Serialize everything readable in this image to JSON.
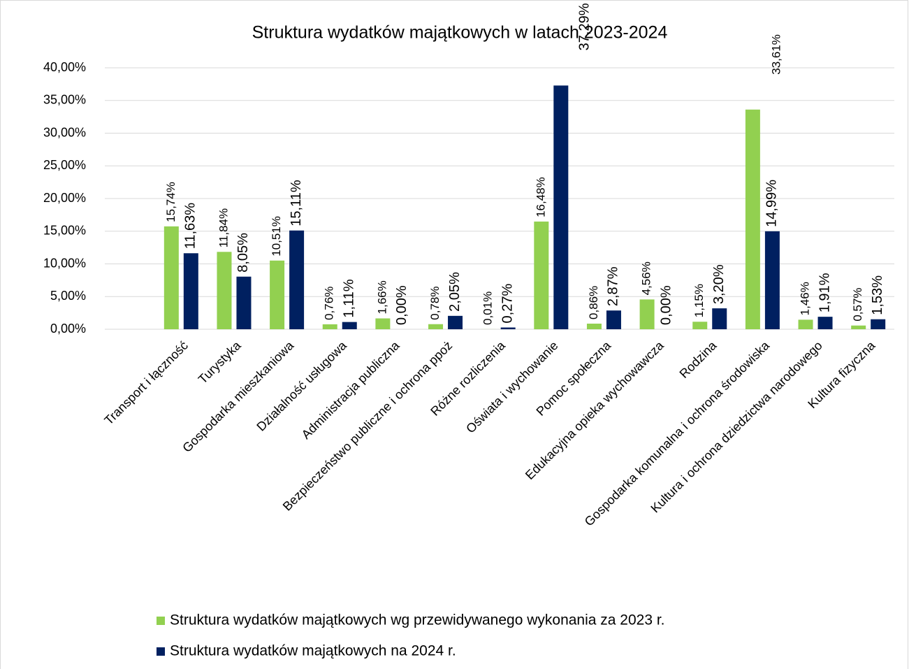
{
  "chart_data": {
    "type": "bar",
    "title": "Struktura wydatków majątkowych w latach 2023-2024",
    "categories": [
      "Transport i łączność",
      "Turystyka",
      "Gospodarka mieszkaniowa",
      "Działalność usługowa",
      "Administracja publiczna",
      "Bezpieczeństwo publiczne i ochrona ppoż",
      "Różne rozliczenia",
      "Oświata i wychowanie",
      "Pomoc społeczna",
      "Edukacyjna opieka wychowawcza",
      "Rodzina",
      "Gospodarka komunalna i ochrona środowiska",
      "Kultura i ochrona dziedzictwa narodowego",
      "Kultura fizyczna"
    ],
    "series": [
      {
        "name": "Struktura wydatków majątkowych wg przewidywanego wykonania za 2023 r.",
        "color": "#92d050",
        "values": [
          15.74,
          11.84,
          10.51,
          0.76,
          1.66,
          0.78,
          0.01,
          16.48,
          0.86,
          4.56,
          1.15,
          33.61,
          1.46,
          0.57
        ],
        "value_labels": [
          "15,74%",
          "11,84%",
          "10,51%",
          "0,76%",
          "1,66%",
          "0,78%",
          "0,01%",
          "16,48%",
          "0,86%",
          "4,56%",
          "1,15%",
          "33,61%",
          "1,46%",
          "0,57%"
        ]
      },
      {
        "name": "Struktura wydatków majątkowych na 2024 r.",
        "color": "#002060",
        "values": [
          11.63,
          8.05,
          15.11,
          1.11,
          0.0,
          2.05,
          0.27,
          37.29,
          2.87,
          0.0,
          3.2,
          14.99,
          1.91,
          1.53
        ],
        "value_labels": [
          "11,63%",
          "8,05%",
          "15,11%",
          "1,11%",
          "0,00%",
          "2,05%",
          "0,27%",
          "37,29%",
          "2,87%",
          "0,00%",
          "3,20%",
          "14,99%",
          "1,91%",
          "1,53%"
        ]
      }
    ],
    "ylim": [
      0,
      40
    ],
    "yticks": [
      {
        "value": 0,
        "label": "0,00%"
      },
      {
        "value": 5,
        "label": "5,00%"
      },
      {
        "value": 10,
        "label": "10,00%"
      },
      {
        "value": 15,
        "label": "15,00%"
      },
      {
        "value": 20,
        "label": "20,00%"
      },
      {
        "value": 25,
        "label": "25,00%"
      },
      {
        "value": 30,
        "label": "30,00%"
      },
      {
        "value": 35,
        "label": "35,00%"
      },
      {
        "value": 40,
        "label": "40,00%"
      }
    ],
    "grid": true,
    "legend": "bottom"
  }
}
